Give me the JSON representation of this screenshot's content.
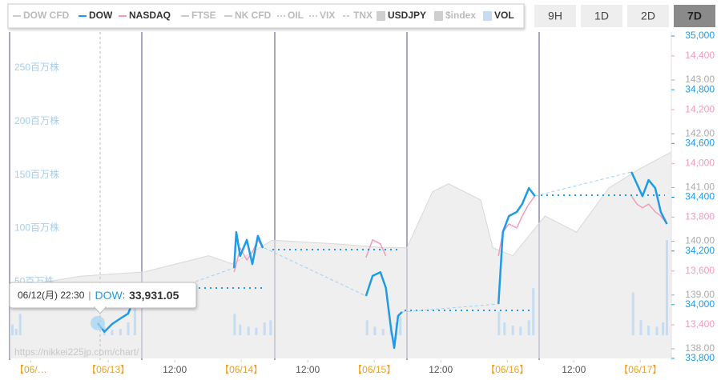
{
  "chart_data": {
    "type": "line",
    "other_legend": [
      "DOW CFD",
      "FTSE",
      "NK CFD",
      "OIL",
      "VIX",
      "TNX",
      "$index"
    ],
    "range_buttons": [
      "9H",
      "1D",
      "2D",
      "7D"
    ],
    "selected_range_index": 3,
    "xlim": [
      -17.8,
      101.6
    ],
    "date_ticks": [
      {
        "value": -14,
        "label": "【06/…"
      },
      {
        "value": 0,
        "label": "【06/13】"
      },
      {
        "value": 24,
        "label": "【06/14】"
      },
      {
        "value": 48,
        "label": "【06/15】"
      },
      {
        "value": 72,
        "label": "【06/16】"
      },
      {
        "value": 96,
        "label": "【06/17】"
      }
    ],
    "time_ticks": [
      {
        "value": 12,
        "label": "12:00"
      },
      {
        "value": 36,
        "label": "12:00"
      },
      {
        "value": 60,
        "label": "12:00"
      },
      {
        "value": 84,
        "label": "12:00"
      }
    ],
    "date_tick_color": "#f0a020",
    "time_tick_color": "#555555",
    "axes": {
      "dow": {
        "side": "right",
        "color": "#1e9be6",
        "ylim": [
          33800,
          35000
        ],
        "yticks": [
          {
            "value": 33800,
            "label": "33,800"
          },
          {
            "value": 34000,
            "label": "34,000"
          },
          {
            "value": 34200,
            "label": "34,200"
          },
          {
            "value": 34400,
            "label": "34,400"
          },
          {
            "value": 34600,
            "label": "34,600"
          },
          {
            "value": 34800,
            "label": "34,800"
          },
          {
            "value": 35000,
            "label": "35,000"
          }
        ]
      },
      "nasdaq": {
        "side": "right",
        "color": "#f29bbd",
        "ylim": [
          13275,
          14474
        ],
        "yticks": [
          {
            "value": 13400,
            "label": "13,400"
          },
          {
            "value": 13600,
            "label": "13,600"
          },
          {
            "value": 13800,
            "label": "13,800"
          },
          {
            "value": 14000,
            "label": "14,000"
          },
          {
            "value": 14200,
            "label": "14,200"
          },
          {
            "value": 14400,
            "label": "14,400"
          }
        ]
      },
      "usdjpy": {
        "side": "right",
        "color": "#aaaaaa",
        "ylim": [
          137.82,
          143.82
        ],
        "yticks": [
          {
            "value": 138,
            "label": "138.00"
          },
          {
            "value": 139,
            "label": "139.00"
          },
          {
            "value": 140,
            "label": "140.00"
          },
          {
            "value": 141,
            "label": "141.00"
          },
          {
            "value": 142,
            "label": "142.00"
          },
          {
            "value": 143,
            "label": "143.00"
          }
        ]
      },
      "vol": {
        "side": "left",
        "color": "#a8cdea",
        "ylim": [
          -21.7,
          280
        ],
        "yticks": [
          {
            "value": 50,
            "label": "50百万株"
          },
          {
            "value": 100,
            "label": "100百万株"
          },
          {
            "value": 150,
            "label": "150百万株"
          },
          {
            "value": 200,
            "label": "200百万株"
          },
          {
            "value": 250,
            "label": "250百万株"
          }
        ]
      }
    },
    "series": [
      {
        "name": "USDJPY",
        "type": "area",
        "axis": "usdjpy",
        "color": "#e4e4e4",
        "x": [
          -17.8,
          -5.1,
          6.5,
          18.1,
          22.4,
          29.6,
          41.2,
          49.9,
          53.9,
          58.5,
          61.4,
          67.2,
          69.4,
          73,
          78.8,
          84.5,
          90.3,
          96.1,
          101.6
        ],
        "values": [
          139.13,
          139.35,
          139.43,
          139.73,
          139.58,
          140.02,
          139.95,
          139.88,
          139.88,
          140.92,
          141.07,
          140.77,
          139.88,
          139.73,
          140.47,
          140.17,
          140.99,
          141.36,
          141.66
        ]
      },
      {
        "name": "VOL",
        "type": "bar",
        "axis": "vol",
        "color": "#c5dcf2",
        "x": [
          -17.3,
          -16.6,
          -15.9,
          -0.7,
          0.7,
          2.2,
          3.6,
          4.8,
          22.8,
          23.8,
          25.3,
          26.7,
          28.2,
          29.3,
          46.7,
          48.1,
          49.6,
          51,
          52,
          52.7,
          70.5,
          71.5,
          73,
          74.4,
          75.9,
          76.7,
          94.7,
          96.1,
          97.5,
          99,
          100.1,
          100.8
        ],
        "values": [
          10,
          6,
          20,
          8,
          5,
          6,
          12,
          37,
          20,
          10,
          8,
          7,
          12,
          14,
          14,
          8,
          6,
          9,
          12,
          18,
          22,
          12,
          9,
          8,
          14,
          44,
          40,
          14,
          9,
          8,
          12,
          89
        ]
      },
      {
        "name": "NASDAQ",
        "type": "line",
        "axis": "nasdaq",
        "color": "#f29bbd",
        "x": [
          -1.9,
          -0.7,
          0.7,
          2.2,
          3.6,
          4.3,
          12,
          22.7,
          23.1,
          23.8,
          25,
          26,
          27,
          27.9,
          36,
          46.5,
          47.7,
          49.1,
          50.1,
          51,
          51.6,
          52.3,
          53,
          62,
          70.4,
          71.2,
          72.3,
          73.7,
          74.7,
          75.9,
          77,
          85,
          94.4,
          95.4,
          96.4,
          97.5,
          98.7,
          99.7,
          100.8
        ],
        "values": [
          null,
          null,
          null,
          null,
          null,
          null,
          null,
          13596,
          13626,
          13686,
          13641,
          13671,
          13716,
          13686,
          null,
          13650,
          13716,
          13701,
          13656,
          null,
          null,
          null,
          null,
          null,
          13656,
          13745,
          13775,
          13760,
          13805,
          13849,
          13879,
          null,
          13879,
          13849,
          13835,
          13849,
          13820,
          13805,
          13775
        ]
      },
      {
        "name": "DOW",
        "type": "line",
        "axis": "dow",
        "color": "#1e9be6",
        "x": [
          -1.9,
          -0.7,
          0.7,
          2.2,
          3.6,
          4.3,
          12,
          22.7,
          23.1,
          23.8,
          25,
          26,
          27,
          27.9,
          36,
          46.5,
          47.7,
          49.1,
          50.1,
          51,
          51.6,
          52.3,
          53,
          62,
          70.4,
          71.2,
          72.3,
          73.7,
          74.7,
          75.9,
          77,
          85,
          94.4,
          95.4,
          96.4,
          97.5,
          98.7,
          99.7,
          100.8
        ],
        "values": [
          33931,
          33899,
          33928,
          33949,
          33967,
          34003,
          null,
          34136,
          34270,
          34181,
          34241,
          34151,
          34256,
          34211,
          null,
          34032,
          34107,
          34121,
          34062,
          33913,
          33839,
          33958,
          33973,
          null,
          34002,
          34270,
          34330,
          34345,
          34375,
          34434,
          34404,
          null,
          34494,
          34449,
          34404,
          34464,
          34434,
          34345,
          34300
        ]
      }
    ],
    "tooltip": {
      "date": "06/12(月) 22:30",
      "separators": [
        "|",
        ":"
      ],
      "x": -1.9,
      "value": 33931.05,
      "value_label": "33,931.05"
    },
    "watermark": "https://nikkei225jp.com/chart/"
  }
}
